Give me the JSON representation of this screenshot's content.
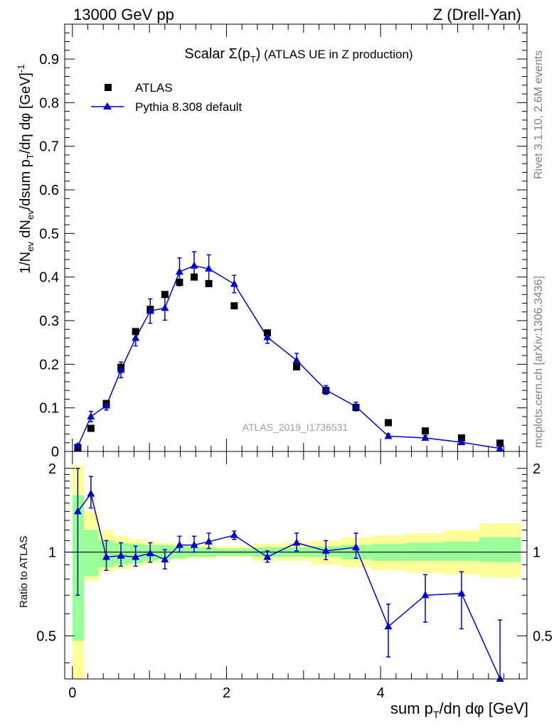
{
  "header": {
    "left": "13000 GeV pp",
    "right": "Z (Drell-Yan)"
  },
  "side_labels": {
    "rivet": "Rivet 3.1.10,  2.6M events",
    "mcplots": "mcplots.cern.ch [arXiv:1306.3436]"
  },
  "plot_title": {
    "main": "Scalar Σ(p",
    "sub": "T",
    "close": ")",
    "rest": " (ATLAS UE in Z production)"
  },
  "watermark": "ATLAS_2019_I1736531",
  "legend": {
    "data_label": "ATLAS",
    "mc_label": "Pythia 8.308 default"
  },
  "axes": {
    "ylabel_main": "1/N",
    "ylabel_sub1": "ev",
    "ylabel_mid": " dN",
    "ylabel_sub2": "ev",
    "ylabel_mid2": "/dsum p",
    "ylabel_sub3": "T",
    "ylabel_end": "/dη dφ  [GeV]",
    "ylabel_sup": "-1",
    "ratio_ylabel": "Ratio to ATLAS",
    "xlabel_main": "sum p",
    "xlabel_sub": "T",
    "xlabel_end": "/dη dφ [GeV]"
  },
  "colors": {
    "mc": "#0000cc",
    "data": "#000000",
    "band_inner": "#99ff99",
    "band_outer": "#ffff99"
  },
  "chart_data": [
    {
      "type": "scatter",
      "panel": "main",
      "xlim": [
        -0.1,
        5.9
      ],
      "ylim": [
        0,
        0.98
      ],
      "x_ticks": [
        0,
        2,
        4
      ],
      "y_ticks": [
        0,
        0.1,
        0.2,
        0.3,
        0.4,
        0.5,
        0.6,
        0.7,
        0.8,
        0.9
      ],
      "y_tick_labels": [
        "0",
        "0.1",
        "0.2",
        "0.3",
        "0.4",
        "0.5",
        "0.6",
        "0.7",
        "0.8",
        "0.9"
      ],
      "series": [
        {
          "name": "ATLAS",
          "style": "markers",
          "x": [
            0.07,
            0.24,
            0.44,
            0.63,
            0.82,
            1.01,
            1.2,
            1.39,
            1.58,
            1.77,
            2.1,
            2.53,
            2.91,
            3.29,
            3.68,
            4.1,
            4.58,
            5.05,
            5.55
          ],
          "y": [
            0.009,
            0.053,
            0.11,
            0.193,
            0.275,
            0.326,
            0.36,
            0.388,
            0.4,
            0.385,
            0.334,
            0.272,
            0.194,
            0.14,
            0.101,
            0.066,
            0.047,
            0.031,
            0.019
          ]
        },
        {
          "name": "Pythia 8.308 default",
          "style": "line-markers",
          "x": [
            0.07,
            0.24,
            0.44,
            0.63,
            0.82,
            1.01,
            1.2,
            1.39,
            1.58,
            1.77,
            2.1,
            2.53,
            2.91,
            3.29,
            3.68,
            4.1,
            4.58,
            5.05,
            5.55
          ],
          "y": [
            0.012,
            0.08,
            0.105,
            0.187,
            0.26,
            0.322,
            0.329,
            0.412,
            0.426,
            0.419,
            0.384,
            0.262,
            0.209,
            0.141,
            0.103,
            0.035,
            0.031,
            0.021,
            0.007
          ],
          "yerr": [
            0.005,
            0.012,
            0.01,
            0.018,
            0.018,
            0.028,
            0.028,
            0.032,
            0.032,
            0.032,
            0.02,
            0.014,
            0.016,
            0.01,
            0.01,
            0.005,
            0.005,
            0.005,
            0.004
          ]
        }
      ]
    },
    {
      "type": "scatter",
      "panel": "ratio",
      "xlim": [
        -0.1,
        5.9
      ],
      "ylim": [
        0.35,
        2.3
      ],
      "x_ticks": [
        0,
        2,
        4
      ],
      "x_tick_labels": [
        "0",
        "2",
        "4"
      ],
      "y_ticks": [
        0.5,
        1,
        2
      ],
      "y_tick_labels": [
        "0.5",
        "1",
        "2"
      ],
      "bands": {
        "edges": [
          0.0,
          0.15,
          0.34,
          0.54,
          0.73,
          0.92,
          1.1,
          1.3,
          1.48,
          1.68,
          1.87,
          2.33,
          2.72,
          3.1,
          3.49,
          3.88,
          4.33,
          4.82,
          5.28,
          5.82
        ],
        "inner_low": [
          0.48,
          0.82,
          0.88,
          0.9,
          0.91,
          0.93,
          0.94,
          0.95,
          0.96,
          0.96,
          0.97,
          0.96,
          0.96,
          0.96,
          0.94,
          0.93,
          0.93,
          0.93,
          0.92
        ],
        "inner_high": [
          1.6,
          1.2,
          1.1,
          1.08,
          1.07,
          1.06,
          1.06,
          1.05,
          1.04,
          1.04,
          1.03,
          1.04,
          1.04,
          1.05,
          1.06,
          1.07,
          1.08,
          1.09,
          1.13
        ],
        "outer_low": [
          0.35,
          0.79,
          0.85,
          0.87,
          0.89,
          0.91,
          0.93,
          0.94,
          0.95,
          0.95,
          0.96,
          0.93,
          0.93,
          0.9,
          0.88,
          0.86,
          0.84,
          0.83,
          0.81
        ],
        "outer_high": [
          2.05,
          1.4,
          1.2,
          1.14,
          1.11,
          1.09,
          1.08,
          1.07,
          1.06,
          1.06,
          1.05,
          1.07,
          1.08,
          1.1,
          1.13,
          1.15,
          1.17,
          1.2,
          1.27
        ]
      },
      "series": [
        {
          "name": "Pythia 8.308 default",
          "style": "line-markers",
          "x": [
            0.07,
            0.24,
            0.44,
            0.63,
            0.82,
            1.01,
            1.2,
            1.39,
            1.58,
            1.77,
            2.1,
            2.53,
            2.91,
            3.29,
            3.68,
            4.1,
            4.58,
            5.05,
            5.55
          ],
          "y": [
            1.4,
            1.62,
            0.96,
            0.97,
            0.96,
            0.99,
            0.94,
            1.06,
            1.06,
            1.09,
            1.15,
            0.96,
            1.08,
            1.01,
            1.04,
            0.54,
            0.7,
            0.71,
            0.35
          ],
          "yerr_low": [
            0.7,
            0.18,
            0.1,
            0.08,
            0.07,
            0.07,
            0.07,
            0.06,
            0.06,
            0.06,
            0.04,
            0.04,
            0.07,
            0.07,
            0.09,
            0.12,
            0.14,
            0.18,
            0.15
          ],
          "yerr_high": [
            0.6,
            0.25,
            0.14,
            0.11,
            0.09,
            0.09,
            0.08,
            0.08,
            0.08,
            0.08,
            0.04,
            0.05,
            0.09,
            0.09,
            0.13,
            0.11,
            0.13,
            0.14,
            0.22
          ]
        }
      ]
    }
  ]
}
